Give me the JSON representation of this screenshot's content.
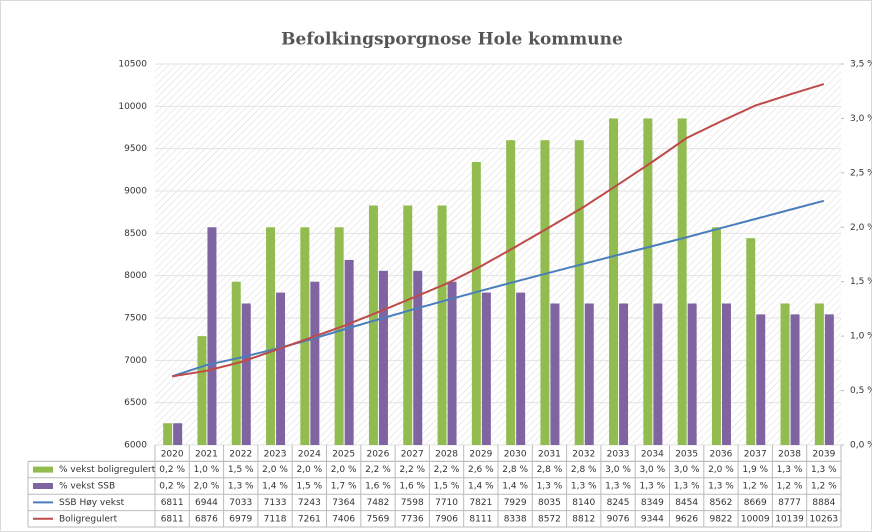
{
  "chart_data": {
    "type": "bar-line-table",
    "title": "Befolkingsporgnose Hole kommune",
    "categories": [
      "2020",
      "2021",
      "2022",
      "2023",
      "2024",
      "2025",
      "2026",
      "2027",
      "2028",
      "2029",
      "2030",
      "2031",
      "2032",
      "2033",
      "2034",
      "2035",
      "2036",
      "2037",
      "2038",
      "2039"
    ],
    "ylim": [
      6000,
      10500
    ],
    "yticks": [
      6000,
      6500,
      7000,
      7500,
      8000,
      8500,
      9000,
      9500,
      10000,
      10500
    ],
    "y2lim": [
      0,
      3.5
    ],
    "y2ticks": [
      {
        "value": 0,
        "label": "0,0 %"
      },
      {
        "value": 0.5,
        "label": "0,5 %"
      },
      {
        "value": 1,
        "label": "1,0 %"
      },
      {
        "value": 1.5,
        "label": "1,5 %"
      },
      {
        "value": 2,
        "label": "2,0 %"
      },
      {
        "value": 2.5,
        "label": "2,5 %"
      },
      {
        "value": 3,
        "label": "3,0 %"
      },
      {
        "value": 3.5,
        "label": "3,5 %"
      }
    ],
    "grid": true,
    "series": [
      {
        "name": "% vekst boligregulert",
        "kind": "bar",
        "axis": "y2",
        "color": "#92bb50",
        "values": [
          0.2,
          1.0,
          1.5,
          2.0,
          2.0,
          2.0,
          2.2,
          2.2,
          2.2,
          2.6,
          2.8,
          2.8,
          2.8,
          3.0,
          3.0,
          3.0,
          2.0,
          1.9,
          1.3,
          1.3
        ],
        "value_labels": [
          "0,2 %",
          "1,0 %",
          "1,5 %",
          "2,0 %",
          "2,0 %",
          "2,0 %",
          "2,2 %",
          "2,2 %",
          "2,2 %",
          "2,6 %",
          "2,8 %",
          "2,8 %",
          "2,8 %",
          "3,0 %",
          "3,0 %",
          "3,0 %",
          "2,0 %",
          "1,9 %",
          "1,3 %",
          "1,3 %"
        ]
      },
      {
        "name": "% vekst SSB",
        "kind": "bar",
        "axis": "y2",
        "color": "#8064a2",
        "values": [
          0.2,
          2.0,
          1.3,
          1.4,
          1.5,
          1.7,
          1.6,
          1.6,
          1.5,
          1.4,
          1.4,
          1.3,
          1.3,
          1.3,
          1.3,
          1.3,
          1.3,
          1.2,
          1.2,
          1.2
        ],
        "value_labels": [
          "0,2 %",
          "2,0 %",
          "1,3 %",
          "1,4 %",
          "1,5 %",
          "1,7 %",
          "1,6 %",
          "1,6 %",
          "1,5 %",
          "1,4 %",
          "1,4 %",
          "1,3 %",
          "1,3 %",
          "1,3 %",
          "1,3 %",
          "1,3 %",
          "1,3 %",
          "1,2 %",
          "1,2 %",
          "1,2 %"
        ]
      },
      {
        "name": "SSB Høy vekst",
        "kind": "line",
        "color": "#4a7ebb",
        "values": [
          6811,
          6944,
          7033,
          7133,
          7243,
          7364,
          7482,
          7598,
          7710,
          7821,
          7929,
          8035,
          8140,
          8245,
          8349,
          8454,
          8562,
          8669,
          8777,
          8884
        ]
      },
      {
        "name": "Boligregulert",
        "kind": "line",
        "color": "#be4b48",
        "values": [
          6811,
          6876,
          6979,
          7118,
          7261,
          7406,
          7569,
          7736,
          7906,
          8111,
          8338,
          8572,
          8812,
          9076,
          9344,
          9626,
          9822,
          10009,
          10139,
          10263
        ]
      }
    ]
  }
}
